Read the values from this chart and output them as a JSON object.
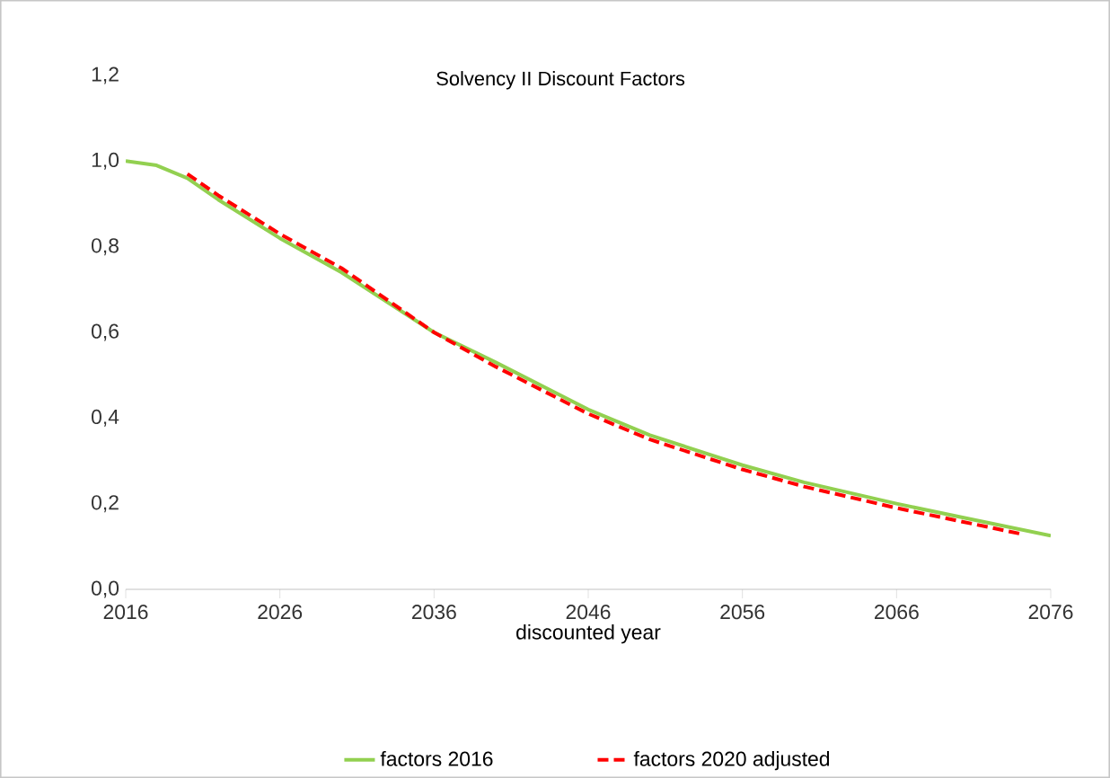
{
  "chart_data": {
    "type": "line",
    "title": "Solvency II Discount Factors",
    "xlabel": "discounted year",
    "xlim": [
      2016,
      2076
    ],
    "xticks": [
      2016,
      2026,
      2036,
      2046,
      2056,
      2066,
      2076
    ],
    "ylim": [
      0,
      1.2
    ],
    "yticks": [
      {
        "value": 0,
        "label": "0,0"
      },
      {
        "value": 0.2,
        "label": "0,2"
      },
      {
        "value": 0.4,
        "label": "0,4"
      },
      {
        "value": 0.6,
        "label": "0,6"
      },
      {
        "value": 0.8,
        "label": "0,8"
      },
      {
        "value": 1.0,
        "label": "1,0"
      },
      {
        "value": 1.2,
        "label": "1,2"
      }
    ],
    "legend": "bottom",
    "series": [
      {
        "name": "factors 2016",
        "color": "#92d050",
        "line_style": "solid",
        "x": [
          2016,
          2018,
          2020,
          2022,
          2026,
          2030,
          2036,
          2040,
          2046,
          2050,
          2056,
          2060,
          2066,
          2070,
          2076
        ],
        "values": [
          1.0,
          0.99,
          0.96,
          0.91,
          0.82,
          0.74,
          0.6,
          0.53,
          0.42,
          0.36,
          0.29,
          0.25,
          0.2,
          0.17,
          0.125
        ]
      },
      {
        "name": "factors 2020 adjusted",
        "color": "#ff0000",
        "line_style": "dashed",
        "x": [
          2020,
          2022,
          2026,
          2030,
          2036,
          2040,
          2046,
          2050,
          2056,
          2060,
          2066,
          2070,
          2074
        ],
        "values": [
          0.97,
          0.92,
          0.83,
          0.75,
          0.6,
          0.52,
          0.41,
          0.35,
          0.28,
          0.24,
          0.19,
          0.16,
          0.13
        ]
      }
    ]
  }
}
